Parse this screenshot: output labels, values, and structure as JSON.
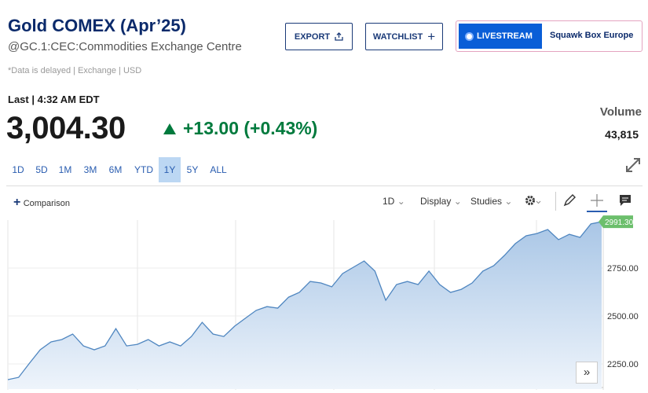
{
  "header": {
    "title": "Gold COMEX (Apr’25)",
    "subtitle": "@GC.1:CEC:Commodities Exchange Centre",
    "note": "*Data is delayed | Exchange | USD"
  },
  "buttons": {
    "export": "EXPORT",
    "watchlist": "WATCHLIST",
    "livestream": "LIVESTREAM",
    "program": "Squawk Box Europe"
  },
  "quote": {
    "last": "Last | 4:32 AM EDT",
    "price": "3,004.30",
    "change": "+13.00 (+0.43%)",
    "volume_label": "Volume",
    "volume": "43,815"
  },
  "ranges": [
    "1D",
    "5D",
    "1M",
    "3M",
    "6M",
    "YTD",
    "1Y",
    "5Y",
    "ALL"
  ],
  "active_range": 6,
  "toolbar": {
    "comparison": "Comparison",
    "interval": "1D",
    "display": "Display",
    "studies": "Studies"
  },
  "chart_data": {
    "type": "area",
    "color": "#4f86c0",
    "values": [
      2168,
      2180,
      2254,
      2324,
      2365,
      2377,
      2406,
      2344,
      2324,
      2344,
      2434,
      2344,
      2352,
      2377,
      2344,
      2365,
      2344,
      2393,
      2467,
      2406,
      2393,
      2447,
      2488,
      2529,
      2549,
      2541,
      2598,
      2623,
      2680,
      2672,
      2652,
      2721,
      2754,
      2787,
      2734,
      2582,
      2664,
      2680,
      2664,
      2734,
      2664,
      2623,
      2639,
      2672,
      2734,
      2762,
      2816,
      2877,
      2918,
      2930,
      2951,
      2898,
      2926,
      2910,
      2980,
      2991.3
    ],
    "last_price": {
      "value": 2991.3,
      "label": "2991.30"
    },
    "ylim": [
      2119,
      3000
    ],
    "yticks": [
      {
        "value": 2250,
        "label": "2250.00"
      },
      {
        "value": 2500,
        "label": "2500.00"
      },
      {
        "value": 2750,
        "label": "2750.00"
      }
    ],
    "grid": true
  }
}
